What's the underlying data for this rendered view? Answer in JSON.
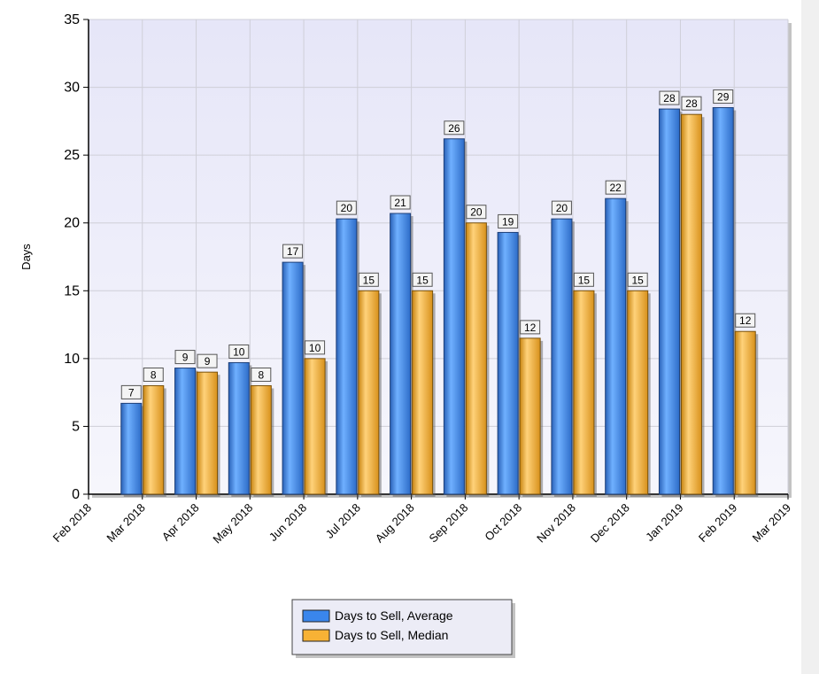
{
  "chart_data": {
    "type": "bar",
    "y_label": "Days",
    "categories": [
      "Feb 2018",
      "Mar 2018",
      "Apr 2018",
      "May 2018",
      "Jun 2018",
      "Jul 2018",
      "Aug 2018",
      "Sep 2018",
      "Oct 2018",
      "Nov 2018",
      "Dec 2018",
      "Jan 2019",
      "Feb 2019",
      "Mar 2019"
    ],
    "series": [
      {
        "name": "Days to Sell, Average",
        "color": "#3a86ec",
        "values": [
          null,
          6.7,
          9.3,
          9.7,
          17.1,
          20.3,
          20.7,
          26.2,
          19.3,
          20.3,
          21.8,
          28.4,
          28.5,
          null
        ],
        "value_labels": [
          null,
          "7",
          "9",
          "10",
          "17",
          "20",
          "21",
          "26",
          "19",
          "20",
          "22",
          "28",
          "29",
          null
        ]
      },
      {
        "name": "Days to Sell, Median",
        "color": "#f7b235",
        "values": [
          null,
          8,
          9,
          8,
          10,
          15,
          15,
          20,
          11.5,
          15,
          15,
          28,
          12,
          null
        ],
        "value_labels": [
          null,
          "8",
          "9",
          "8",
          "10",
          "15",
          "15",
          "20",
          "12",
          "15",
          "15",
          "28",
          "12",
          null
        ]
      }
    ],
    "ylim": [
      0,
      35
    ],
    "yticks": [
      0,
      5,
      10,
      15,
      20,
      25,
      30,
      35
    ],
    "grid": true
  }
}
